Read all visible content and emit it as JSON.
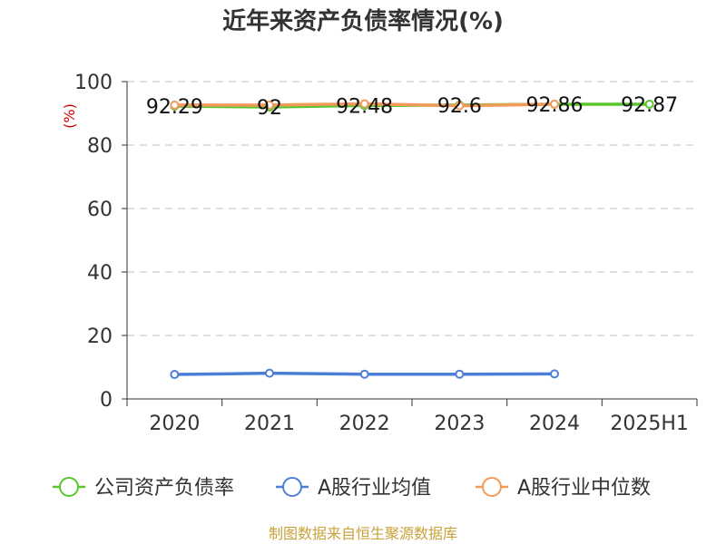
{
  "chart_data": {
    "type": "line",
    "title": "近年来资产负债率情况(%)",
    "ylabel": "(%)",
    "xlabel": "",
    "categories": [
      "2020",
      "2021",
      "2022",
      "2023",
      "2024",
      "2025H1"
    ],
    "ylim": [
      0,
      100
    ],
    "yticks": [
      0,
      20,
      40,
      60,
      80,
      100
    ],
    "grid": true,
    "legend_position": "bottom",
    "series": [
      {
        "name": "公司资产负债率",
        "color": "#5ac72f",
        "values": [
          92.29,
          92,
          92.48,
          92.6,
          92.86,
          92.87
        ],
        "labels": [
          "92.29",
          "92",
          "92.48",
          "92.6",
          "92.86",
          "92.87"
        ]
      },
      {
        "name": "A股行业均值",
        "color": "#4e7fd6",
        "values": [
          7.7,
          8.1,
          7.8,
          7.8,
          7.9,
          null
        ]
      },
      {
        "name": "A股行业中位数",
        "color": "#f39a5a",
        "values": [
          92.6,
          92.6,
          93.0,
          92.4,
          92.9,
          null
        ]
      }
    ]
  },
  "source": "制图数据来自恒生聚源数据库"
}
